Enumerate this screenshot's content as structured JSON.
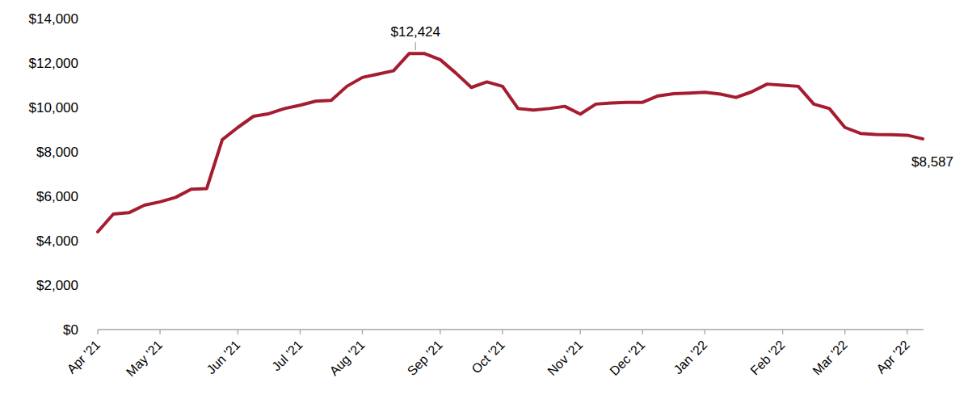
{
  "chart_data": {
    "type": "line",
    "categories": [
      "Apr '21",
      null,
      null,
      null,
      "May '21",
      null,
      null,
      null,
      null,
      "Jun '21",
      null,
      null,
      null,
      "Jul '21",
      null,
      null,
      null,
      "Aug '21",
      null,
      null,
      null,
      null,
      "Sep '21",
      null,
      null,
      null,
      "Oct '21",
      null,
      null,
      null,
      null,
      "Nov '21",
      null,
      null,
      null,
      "Dec '21",
      null,
      null,
      null,
      "Jan '22",
      null,
      null,
      null,
      null,
      "Feb '22",
      null,
      null,
      null,
      "Mar '22",
      null,
      null,
      null,
      "Apr '22",
      null
    ],
    "values": [
      4400,
      5200,
      5260,
      5600,
      5750,
      5950,
      6320,
      6350,
      8550,
      9100,
      9600,
      9720,
      9950,
      10100,
      10280,
      10320,
      10950,
      11350,
      11500,
      11650,
      12424,
      12424,
      12150,
      11550,
      10900,
      11150,
      10950,
      9950,
      9880,
      9950,
      10050,
      9700,
      10150,
      10200,
      10230,
      10230,
      10520,
      10620,
      10650,
      10680,
      10600,
      10450,
      10700,
      11050,
      11000,
      10950,
      10150,
      9950,
      9100,
      8830,
      8780,
      8770,
      8750,
      8587
    ],
    "value_labels": [
      null,
      null,
      null,
      null,
      null,
      null,
      null,
      null,
      null,
      null,
      null,
      null,
      null,
      null,
      null,
      null,
      null,
      null,
      null,
      null,
      "$12,424",
      null,
      null,
      null,
      null,
      null,
      null,
      null,
      null,
      null,
      null,
      null,
      null,
      null,
      null,
      null,
      null,
      null,
      null,
      null,
      null,
      null,
      null,
      null,
      null,
      null,
      null,
      null,
      null,
      null,
      null,
      null,
      null,
      "$8,587"
    ],
    "color": "#a51c30",
    "ylim": [
      0,
      14000
    ],
    "yticks": [
      {
        "value": 0,
        "label": "$0"
      },
      {
        "value": 2000,
        "label": "$2,000"
      },
      {
        "value": 4000,
        "label": "$4,000"
      },
      {
        "value": 6000,
        "label": "$6,000"
      },
      {
        "value": 8000,
        "label": "$8,000"
      },
      {
        "value": 10000,
        "label": "$10,000"
      },
      {
        "value": 12000,
        "label": "$12,000"
      },
      {
        "value": 14000,
        "label": "$14,000"
      }
    ],
    "grid": false
  }
}
